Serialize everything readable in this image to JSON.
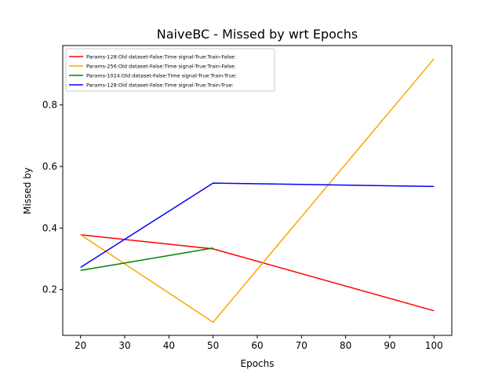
{
  "chart_data": {
    "type": "line",
    "title": "NaiveBC - Missed by wrt Epochs",
    "xlabel": "Epochs",
    "ylabel": "Missed by",
    "xlim": [
      15.97,
      104.03
    ],
    "ylim": [
      0.051,
      0.993
    ],
    "xticks": [
      20,
      30,
      40,
      50,
      60,
      70,
      80,
      90,
      100
    ],
    "yticks": [
      0.2,
      0.4,
      0.6,
      0.8
    ],
    "ytick_labels": [
      "0.2",
      "0.4",
      "0.6",
      "0.8"
    ],
    "grid": false,
    "legend_position": "top-left",
    "series": [
      {
        "name": "Params-128:Old dataset-False:Time signal-True:Train-False:",
        "color": "#ff0000",
        "x": [
          20,
          50,
          100
        ],
        "y": [
          0.378,
          0.332,
          0.131
        ]
      },
      {
        "name": "Params-256:Old dataset-False:Time signal-True:Train-False:",
        "color": "#ffa500",
        "x": [
          20,
          50,
          100
        ],
        "y": [
          0.378,
          0.094,
          0.95
        ]
      },
      {
        "name": "Params-1024:Old dataset-False:Time signal-True:Train-True:",
        "color": "#008000",
        "x": [
          20,
          50
        ],
        "y": [
          0.262,
          0.335
        ]
      },
      {
        "name": "Params-128:Old dataset-False:Time signal-True:Train-True:",
        "color": "#0000ff",
        "x": [
          20,
          50,
          100
        ],
        "y": [
          0.272,
          0.546,
          0.535
        ]
      }
    ]
  }
}
